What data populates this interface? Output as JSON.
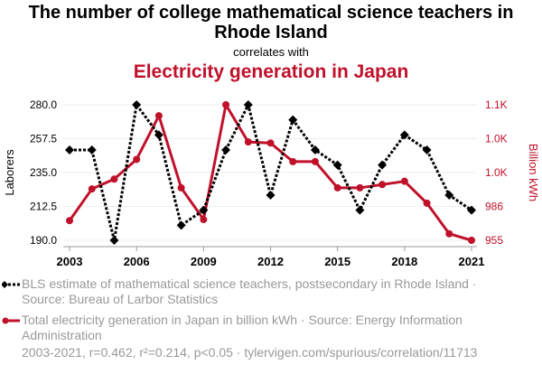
{
  "title": "The number of college mathematical science teachers in Rhode Island",
  "subtitle": "correlates with",
  "title2": "Electricity generation in Japan",
  "colors": {
    "series1": "#000000",
    "series2": "#c0112b",
    "text_muted": "#999999"
  },
  "chart_data": {
    "type": "line",
    "x": [
      2003,
      2004,
      2005,
      2006,
      2007,
      2008,
      2009,
      2010,
      2011,
      2012,
      2013,
      2014,
      2015,
      2016,
      2017,
      2018,
      2019,
      2020,
      2021
    ],
    "x_ticks": [
      "2003",
      "2006",
      "2009",
      "2012",
      "2015",
      "2018",
      "2021"
    ],
    "ylabel": "Laborers",
    "ylabel_right": "Billion kWh",
    "ylim": [
      190,
      280
    ],
    "ylim_right": [
      955,
      1079
    ],
    "y_ticks": [
      "190.0",
      "212.5",
      "235.0",
      "257.5",
      "280.0"
    ],
    "y_ticks_right": [
      {
        "label": "955",
        "value": 955
      },
      {
        "label": "986",
        "value": 986
      },
      {
        "label": "1.0K",
        "value": 1017
      },
      {
        "label": "1.0K",
        "value": 1048
      },
      {
        "label": "1.1K",
        "value": 1079
      }
    ],
    "grid": true,
    "series": [
      {
        "name": "BLS estimate of mathematical science teachers, postsecondary in Rhode Island · Source: Bureau of Larbor Statistics",
        "axis": "left",
        "values": [
          250,
          250,
          190,
          280,
          260,
          200,
          210,
          250,
          280,
          220,
          270,
          250,
          240,
          210,
          240,
          260,
          250,
          220,
          210
        ]
      },
      {
        "name": "Total electricity generation in Japan in billion kWh · Source: Energy Information Administration",
        "axis": "right",
        "values": [
          973,
          1002,
          1011,
          1029,
          1069,
          1003,
          974,
          1079,
          1045,
          1044,
          1027,
          1027,
          1003,
          1003,
          1006,
          1009,
          989,
          961,
          955
        ]
      }
    ]
  },
  "footer": "2003-2021, r=0.462, r²=0.214, p<0.05 · tylervigen.com/spurious/correlation/11713"
}
